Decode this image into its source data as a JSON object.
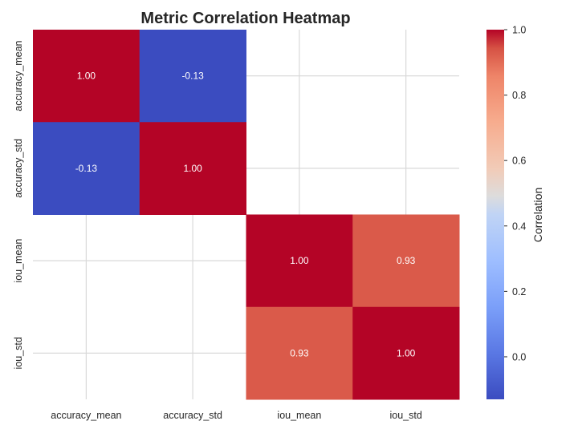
{
  "chart_data": {
    "type": "heatmap",
    "title": "Metric Correlation Heatmap",
    "x_categories": [
      "accuracy_mean",
      "accuracy_std",
      "iou_mean",
      "iou_std"
    ],
    "y_categories": [
      "accuracy_mean",
      "accuracy_std",
      "iou_mean",
      "iou_std"
    ],
    "matrix": [
      [
        1.0,
        -0.13,
        null,
        null
      ],
      [
        -0.13,
        1.0,
        null,
        null
      ],
      [
        null,
        null,
        1.0,
        0.93
      ],
      [
        null,
        null,
        0.93,
        1.0
      ]
    ],
    "cell_labels": [
      [
        "1.00",
        "-0.13",
        "",
        ""
      ],
      [
        "-0.13",
        "1.00",
        "",
        ""
      ],
      [
        "",
        "",
        "1.00",
        "0.93"
      ],
      [
        "",
        "",
        "0.93",
        "1.00"
      ]
    ],
    "colormap": "coolwarm",
    "colorbar": {
      "label": "Correlation",
      "range": [
        -0.13,
        1.0
      ],
      "ticks": [
        0.0,
        0.2,
        0.4,
        0.6,
        0.8,
        1.0
      ],
      "tick_labels": [
        "0.0",
        "0.2",
        "0.4",
        "0.6",
        "0.8",
        "1.0"
      ]
    },
    "grid": true
  }
}
